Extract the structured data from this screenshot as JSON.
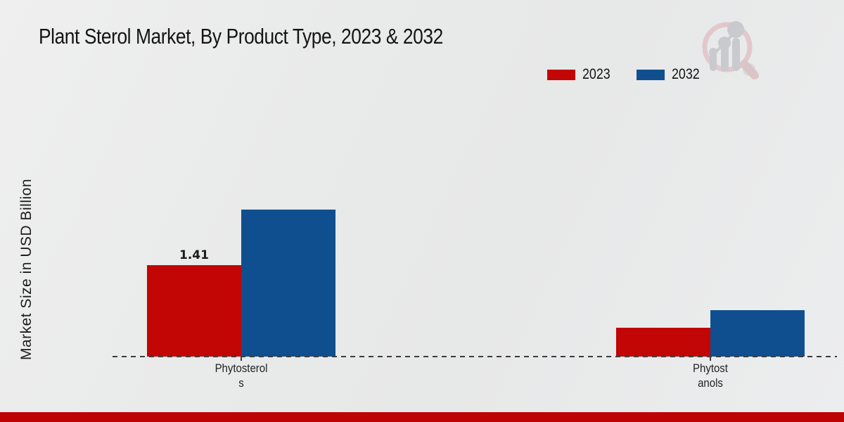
{
  "page_title": "Plant Sterol Market, By Product Type, 2023 & 2032",
  "chart_data": {
    "type": "bar",
    "title": "Plant Sterol Market, By Product Type, 2023 & 2032",
    "xlabel": "",
    "ylabel": "Market Size in USD Billion",
    "categories": [
      "Phytosterols",
      "Phytostanols"
    ],
    "category_label_lines": [
      [
        "Phytosterol",
        "s"
      ],
      [
        "Phytost",
        "anols"
      ]
    ],
    "series": [
      {
        "name": "2023",
        "color": "#c20505",
        "values": [
          1.41,
          0.44
        ]
      },
      {
        "name": "2032",
        "color": "#0f4f8f",
        "values": [
          2.27,
          0.72
        ]
      }
    ],
    "data_labels": [
      {
        "series_index": 0,
        "category_index": 0,
        "text": "1.41"
      }
    ],
    "ylim": [
      0,
      2.5
    ],
    "grid": false,
    "baseline_style": "dashed",
    "legend_position": "top-right"
  },
  "legend": {
    "items": [
      {
        "label": "2023",
        "color": "#c20505"
      },
      {
        "label": "2032",
        "color": "#0f4f8f"
      }
    ]
  },
  "branding": {
    "logo_icon": "magnifier-bar-chart-logo"
  },
  "colors": {
    "series_2023": "#c20505",
    "series_2032": "#0f4f8f",
    "background": "#e9eaea",
    "bottom_strip": "#bd0303",
    "baseline": "#3d3d3d",
    "text": "#141414"
  }
}
